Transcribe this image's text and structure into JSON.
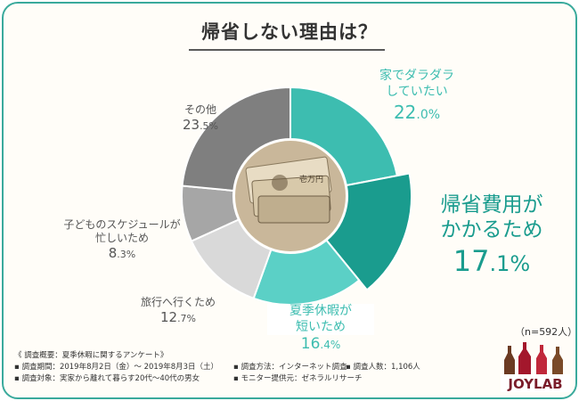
{
  "title": "帰省しない理由は？",
  "sample": "（n=592人）",
  "colors": {
    "slices": [
      "#3dbdb0",
      "#1a9c8e",
      "#5bd0c6",
      "#d9d9d9",
      "#a6a6a6",
      "#7f7f7f"
    ],
    "accent": "#1a9c8e",
    "gray_text": "#555555"
  },
  "chart_data": {
    "type": "pie",
    "variant": "donut",
    "unit": "%",
    "slices": [
      {
        "label": "家でダラダラしていたい",
        "value": 22.0
      },
      {
        "label": "帰省費用がかかるため",
        "value": 17.1
      },
      {
        "label": "夏季休暇が短いため",
        "value": 16.4
      },
      {
        "label": "旅行へ行くため",
        "value": 12.7
      },
      {
        "label": "子どものスケジュールが忙しいため",
        "value": 8.3
      },
      {
        "label": "その他",
        "value": 23.5
      }
    ]
  },
  "labels": {
    "s0": {
      "line1": "家でダラダラ",
      "line2": "していたい",
      "pct_int": "22",
      "pct_dec": ".0%"
    },
    "s1": {
      "line1": "帰省費用が",
      "line2": "かかるため",
      "pct_int": "17",
      "pct_dec": ".1%"
    },
    "s2": {
      "line1": "夏季休暇が",
      "line2": "短いため",
      "pct_int": "16",
      "pct_dec": ".4%"
    },
    "s3": {
      "line1": "旅行へ行くため",
      "pct_int": "12",
      "pct_dec": ".7%"
    },
    "s4": {
      "line1": "子どものスケジュールが",
      "line2": "忙しいため",
      "pct_int": "8",
      "pct_dec": ".3%"
    },
    "s5": {
      "line1": "その他",
      "pct_int": "23",
      "pct_dec": ".5%"
    }
  },
  "footnote": {
    "overview": "《 調査概要：夏季休暇に関するアンケート》",
    "period": "▪ 調査期間：2019年8月2日（金）〜 2019年8月3日（土）",
    "method": "▪ 調査方法：インターネット調査",
    "count": "▪ 調査人数：1,106人",
    "target": "▪ 調査対象：実家から離れて暮らす20代〜40代の男女",
    "provider": "▪ モニター提供元：ゼネラルリサーチ"
  },
  "logo": {
    "text": "JOYLAB",
    "icon": "bottles-icon"
  }
}
